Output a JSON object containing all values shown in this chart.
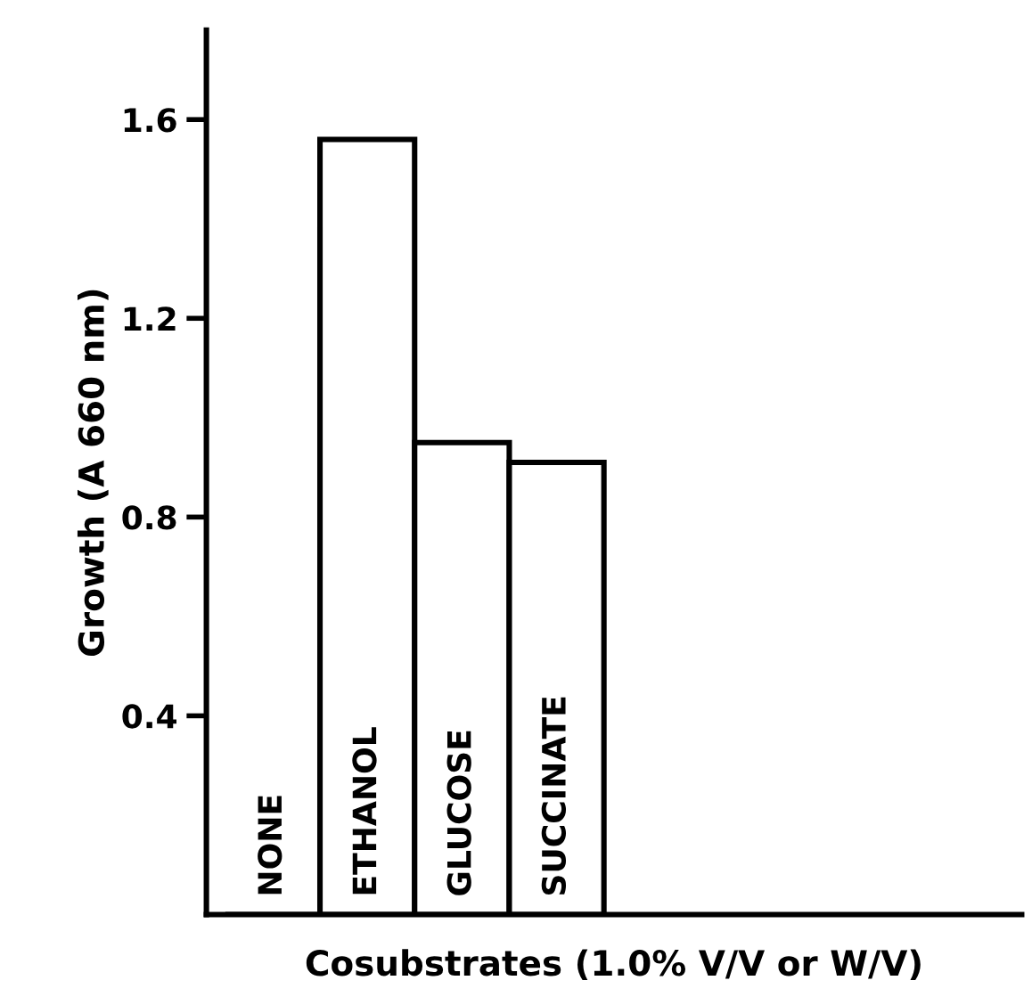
{
  "chart_data": {
    "type": "bar",
    "xlabel": "Cosubstrates (1.0% V/V or W/V)",
    "ylabel": "Growth (A 660 nm)",
    "categories": [
      "NONE",
      "ETHANOL",
      "GLUCOSE",
      "SUCCINATE"
    ],
    "values": [
      0,
      1.56,
      0.95,
      0.91
    ],
    "color": "#ffffff",
    "ylim": [
      0,
      1.78
    ],
    "yticks": [
      {
        "value": 0.4,
        "label": "0.4"
      },
      {
        "value": 0.8,
        "label": "0.8"
      },
      {
        "value": 1.2,
        "label": "1.2"
      },
      {
        "value": 1.6,
        "label": "1.6"
      }
    ],
    "grid": false
  }
}
